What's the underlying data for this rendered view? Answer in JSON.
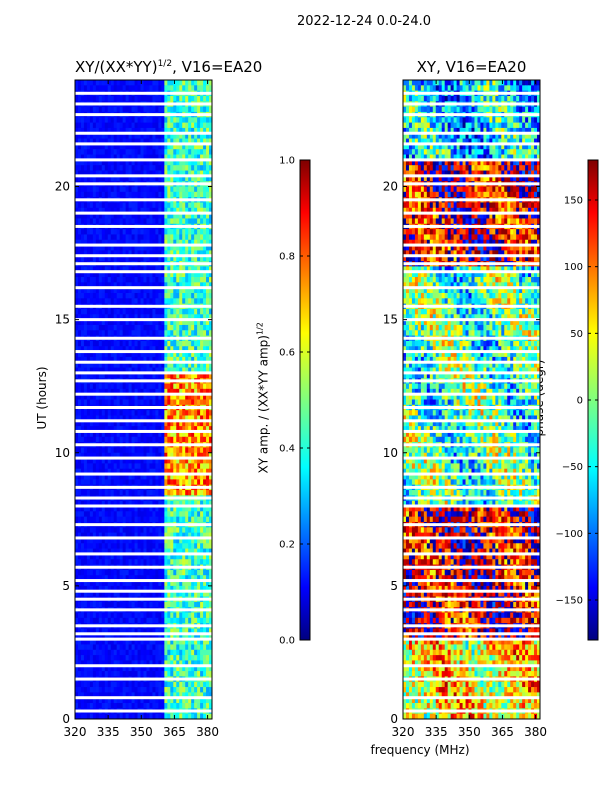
{
  "figure": {
    "suptitle": "2022-12-24 0.0-24.0",
    "xlabel_shared": "frequency (MHz)"
  },
  "chart_data": [
    {
      "type": "heatmap",
      "title": "XY/(XX*YY)^1/2, V16=EA20",
      "title_main": "XY/(XX*YY)",
      "title_sup": "1/2",
      "title_tail": ", V16=EA20",
      "xlabel": "frequency (MHz)",
      "ylabel": "UT (hours)",
      "xlim": [
        320,
        382
      ],
      "ylim": [
        0,
        24
      ],
      "xticks": [
        320,
        335,
        350,
        365,
        380
      ],
      "yticks": [
        0,
        5,
        10,
        15,
        20
      ],
      "colormap": "jet",
      "colorbar": {
        "label": "XY amp. / (XX*YY amp)^1/2",
        "label_main": "XY amp. / (XX*YY amp)",
        "label_sup": "1/2",
        "range": [
          0.0,
          1.0
        ],
        "ticks": [
          "0.0",
          "0.2",
          "0.4",
          "0.6",
          "0.8",
          "1.0"
        ]
      },
      "bright_band_mhz": [
        360,
        382
      ],
      "strong_amplitude_hours": [
        [
          8.5,
          13
        ]
      ],
      "flagged_hours": [
        0.3,
        0.8,
        1.5,
        2.0,
        3.0,
        3.2,
        3.5,
        4.1,
        4.5,
        4.8,
        5.2,
        5.7,
        6.2,
        6.8,
        7.3,
        8.0,
        8.3,
        8.7,
        9.2,
        9.8,
        10.3,
        10.8,
        11.2,
        11.7,
        12.2,
        12.7,
        13.0,
        13.4,
        13.8,
        14.3,
        15.0,
        15.5,
        16.2,
        16.8,
        17.1,
        17.4,
        17.8,
        18.5,
        19.0,
        19.5,
        20.1,
        20.4,
        21.0,
        21.6,
        22.0,
        22.7,
        23.1,
        23.5
      ]
    },
    {
      "type": "heatmap",
      "title": "XY, V16=EA20",
      "xlabel": "frequency (MHz)",
      "ylabel": "",
      "xlim": [
        320,
        382
      ],
      "ylim": [
        0,
        24
      ],
      "xticks": [
        320,
        335,
        350,
        365,
        380
      ],
      "yticks": [
        0,
        5,
        10,
        15,
        20
      ],
      "colormap": "jet",
      "colorbar": {
        "label": "phase (degr)",
        "range": [
          -180,
          180
        ],
        "ticks": [
          "−150",
          "−100",
          "−50",
          "0",
          "50",
          "100",
          "150"
        ]
      },
      "phase_regions": [
        {
          "hours": [
            0,
            3
          ],
          "dominant_phase_degr": 50
        },
        {
          "hours": [
            3,
            8
          ],
          "dominant_phase_degr": 150
        },
        {
          "hours": [
            8,
            17
          ],
          "dominant_phase_degr": -20
        },
        {
          "hours": [
            17,
            21
          ],
          "dominant_phase_degr": 150
        },
        {
          "hours": [
            21,
            24
          ],
          "dominant_phase_degr": -60
        }
      ],
      "flagged_hours": [
        0.3,
        0.8,
        1.5,
        2.0,
        3.0,
        3.2,
        3.5,
        4.1,
        4.5,
        4.8,
        5.2,
        5.7,
        6.2,
        6.8,
        7.3,
        8.0,
        8.3,
        8.7,
        9.2,
        9.8,
        10.3,
        10.8,
        11.2,
        11.7,
        12.2,
        12.7,
        13.0,
        13.4,
        13.8,
        14.3,
        15.0,
        15.5,
        16.2,
        16.8,
        17.1,
        17.4,
        17.8,
        18.5,
        19.0,
        19.5,
        20.1,
        20.4,
        21.0,
        21.6,
        22.0,
        22.7,
        23.1,
        23.5
      ]
    }
  ]
}
